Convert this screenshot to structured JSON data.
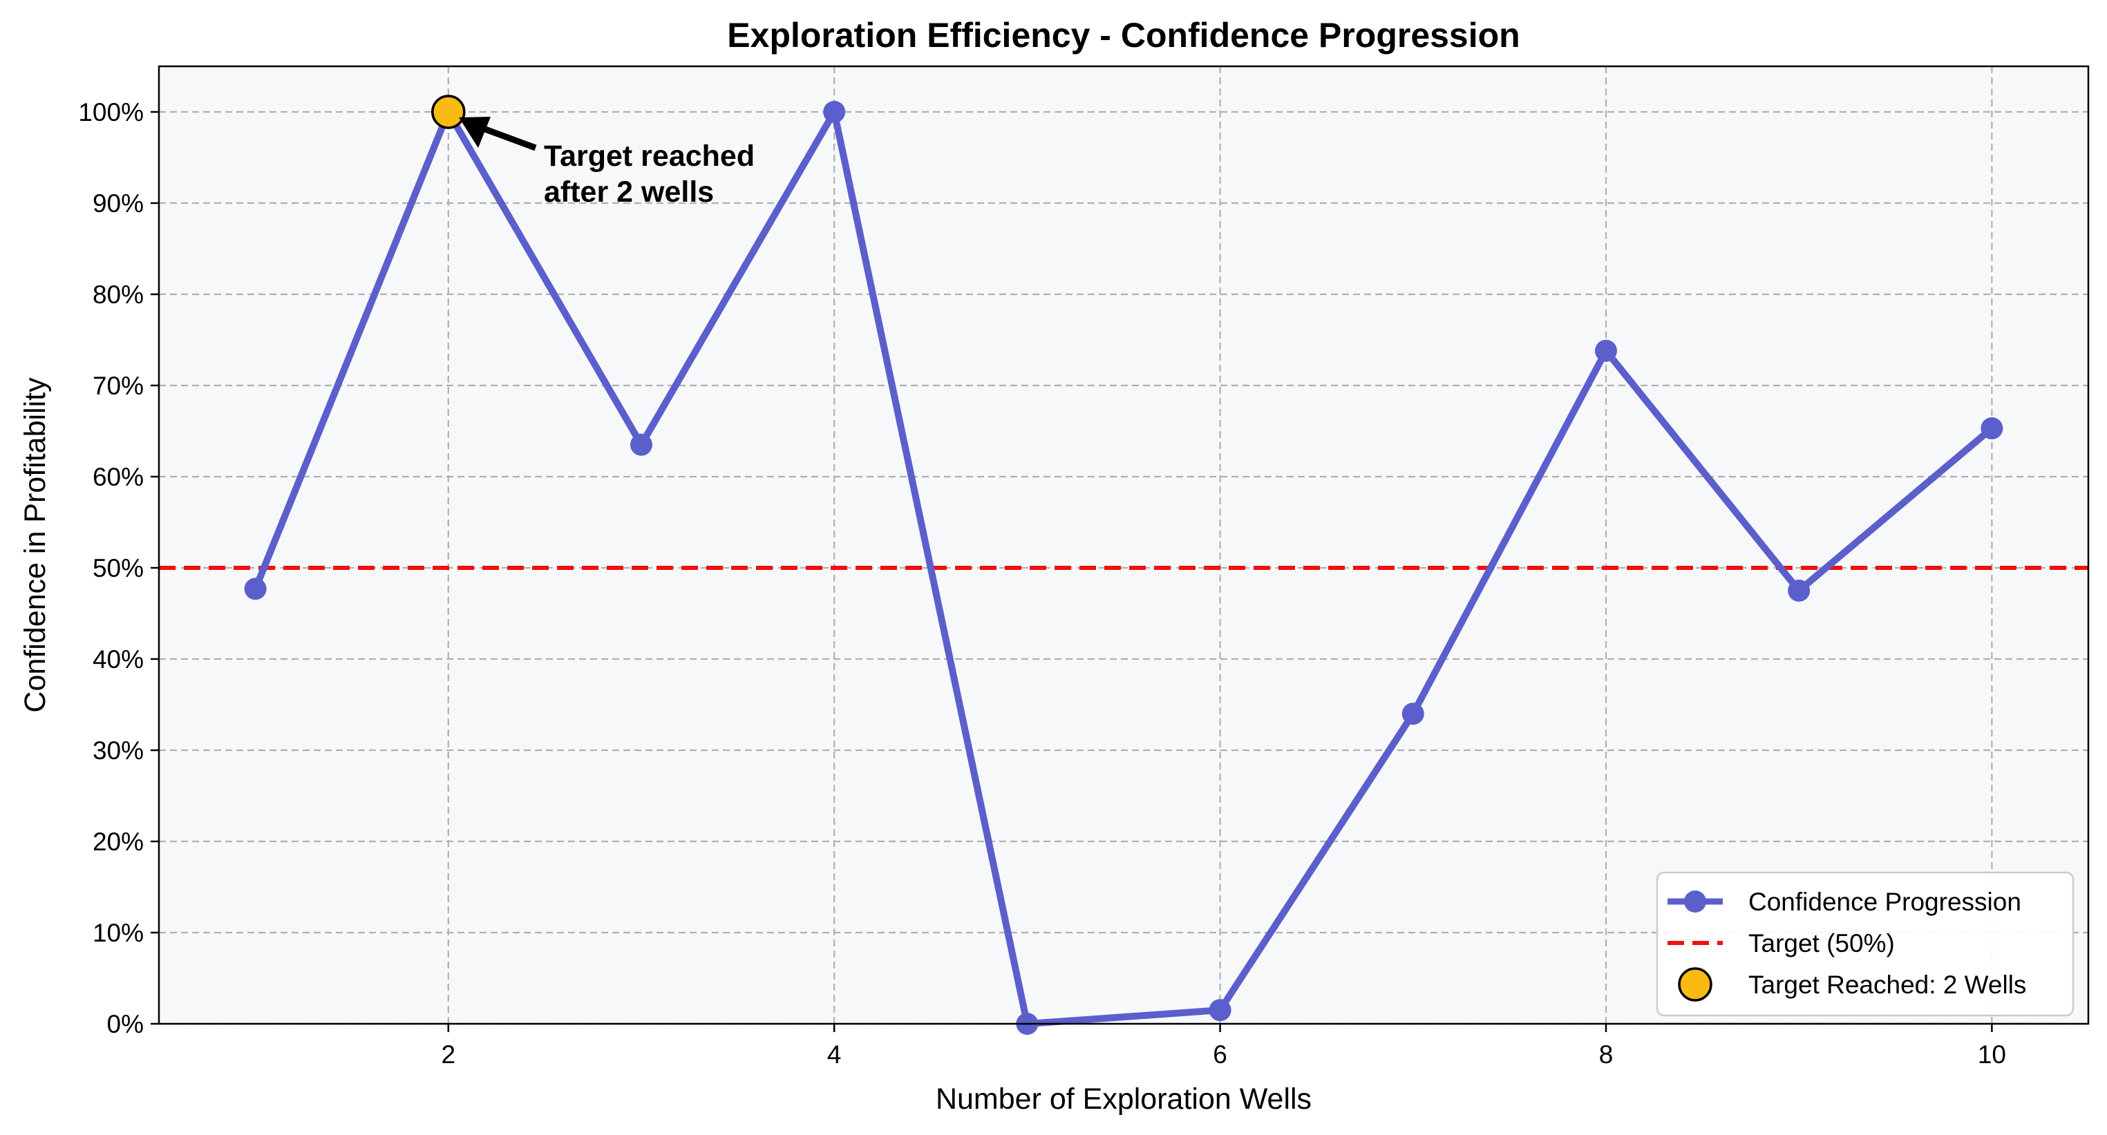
{
  "chart_data": {
    "type": "line",
    "title": "Exploration Efficiency - Confidence Progression",
    "xlabel": "Number of Exploration Wells",
    "ylabel": "Confidence in Profitability",
    "xlim": [
      0.5,
      10.5
    ],
    "ylim": [
      0,
      1.05
    ],
    "xticks": [
      2,
      4,
      6,
      8,
      10
    ],
    "yticks": [
      0,
      0.1,
      0.2,
      0.3,
      0.4,
      0.5,
      0.6,
      0.7,
      0.8,
      0.9,
      1.0
    ],
    "ytick_format": "percent",
    "grid": true,
    "background": "#f7f8fa",
    "series": [
      {
        "name": "Confidence Progression",
        "color": "#5b5fcc",
        "x": [
          1,
          2,
          3,
          4,
          5,
          6,
          7,
          8,
          9,
          10
        ],
        "values": [
          0.477,
          1.0,
          0.635,
          1.0,
          0.0,
          0.015,
          0.34,
          0.738,
          0.475,
          0.653
        ]
      }
    ],
    "reference_line": {
      "name": "Target (50%)",
      "y": 0.5,
      "color": "#ee1111",
      "style": "dashed"
    },
    "highlight": {
      "name": "Target Reached: 2 Wells",
      "x": 2,
      "y": 1.0,
      "color": "#f9bb13"
    },
    "annotation": {
      "text_line1": "Target reached",
      "text_line2": "after 2 wells",
      "points_to": [
        2,
        1.0
      ]
    },
    "legend": {
      "placement": "lower-right",
      "entries": [
        "Confidence Progression",
        "Target (50%)",
        "Target Reached: 2 Wells"
      ]
    }
  }
}
